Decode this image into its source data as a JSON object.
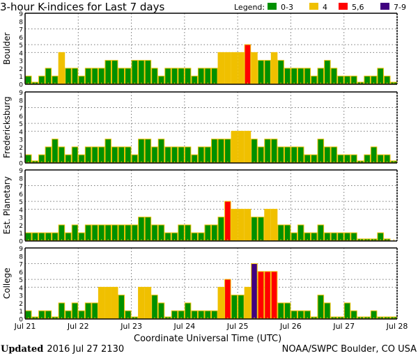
{
  "chart_data": {
    "type": "bar",
    "title": "3-hour K-indices for Last 7 days",
    "legend": {
      "label": "Legend:",
      "entries": [
        {
          "label": "0-3",
          "color": "#009000"
        },
        {
          "label": "4",
          "color": "#f0c000"
        },
        {
          "label": "5,6",
          "color": "#ff0000"
        },
        {
          "label": "7-9",
          "color": "#400080"
        }
      ]
    },
    "xlabel": "Coordinate Universal Time (UTC)",
    "x_ticks": [
      "Jul 21",
      "Jul 22",
      "Jul 23",
      "Jul 24",
      "Jul 25",
      "Jul 26",
      "Jul 27",
      "Jul 28"
    ],
    "y_ticks": [
      "0",
      "1",
      "2",
      "3",
      "4",
      "5",
      "6",
      "7",
      "8",
      "9"
    ],
    "ylim": [
      0,
      9
    ],
    "bars_per_day": 8,
    "panels": [
      {
        "name": "Boulder",
        "values": [
          1,
          0,
          1,
          2,
          1,
          4,
          2,
          2,
          1,
          2,
          2,
          2,
          3,
          3,
          2,
          2,
          3,
          3,
          3,
          2,
          1,
          2,
          2,
          2,
          2,
          1,
          2,
          2,
          2,
          4,
          4,
          4,
          4,
          5,
          4,
          3,
          3,
          4,
          3,
          2,
          2,
          2,
          2,
          1,
          2,
          3,
          2,
          1,
          1,
          1,
          0,
          1,
          1,
          2,
          1,
          0
        ]
      },
      {
        "name": "Fredericksburg",
        "values": [
          1,
          0,
          1,
          2,
          3,
          2,
          1,
          2,
          1,
          2,
          2,
          2,
          3,
          2,
          2,
          2,
          1,
          3,
          3,
          2,
          3,
          2,
          2,
          2,
          2,
          1,
          2,
          2,
          3,
          3,
          3,
          4,
          4,
          4,
          3,
          2,
          3,
          3,
          2,
          2,
          2,
          2,
          1,
          1,
          3,
          2,
          2,
          1,
          1,
          1,
          0,
          1,
          2,
          1,
          1,
          0
        ]
      },
      {
        "name": "Est. Planetary",
        "values": [
          1,
          1,
          1,
          1,
          1,
          2,
          1,
          2,
          1,
          2,
          2,
          2,
          2,
          2,
          2,
          2,
          2,
          3,
          3,
          2,
          2,
          1,
          1,
          2,
          2,
          1,
          1,
          2,
          2,
          3,
          5,
          4,
          4,
          4,
          3,
          3,
          4,
          4,
          2,
          2,
          1,
          2,
          1,
          1,
          2,
          1,
          1,
          1,
          1,
          1,
          0,
          0,
          0,
          1,
          0,
          null
        ]
      },
      {
        "name": "College",
        "values": [
          1,
          0,
          1,
          1,
          0,
          2,
          1,
          2,
          1,
          2,
          2,
          4,
          4,
          4,
          3,
          1,
          0,
          4,
          4,
          3,
          2,
          0,
          1,
          1,
          2,
          1,
          1,
          1,
          1,
          4,
          5,
          3,
          3,
          4,
          7,
          6,
          6,
          6,
          2,
          2,
          1,
          1,
          1,
          0,
          3,
          2,
          0,
          0,
          2,
          1,
          0,
          0,
          1,
          0,
          0,
          0
        ]
      }
    ]
  },
  "footer": {
    "updated_label": "Updated",
    "updated_value": "2016 Jul 27 2130",
    "credit": "NOAA/SWPC Boulder, CO USA"
  }
}
